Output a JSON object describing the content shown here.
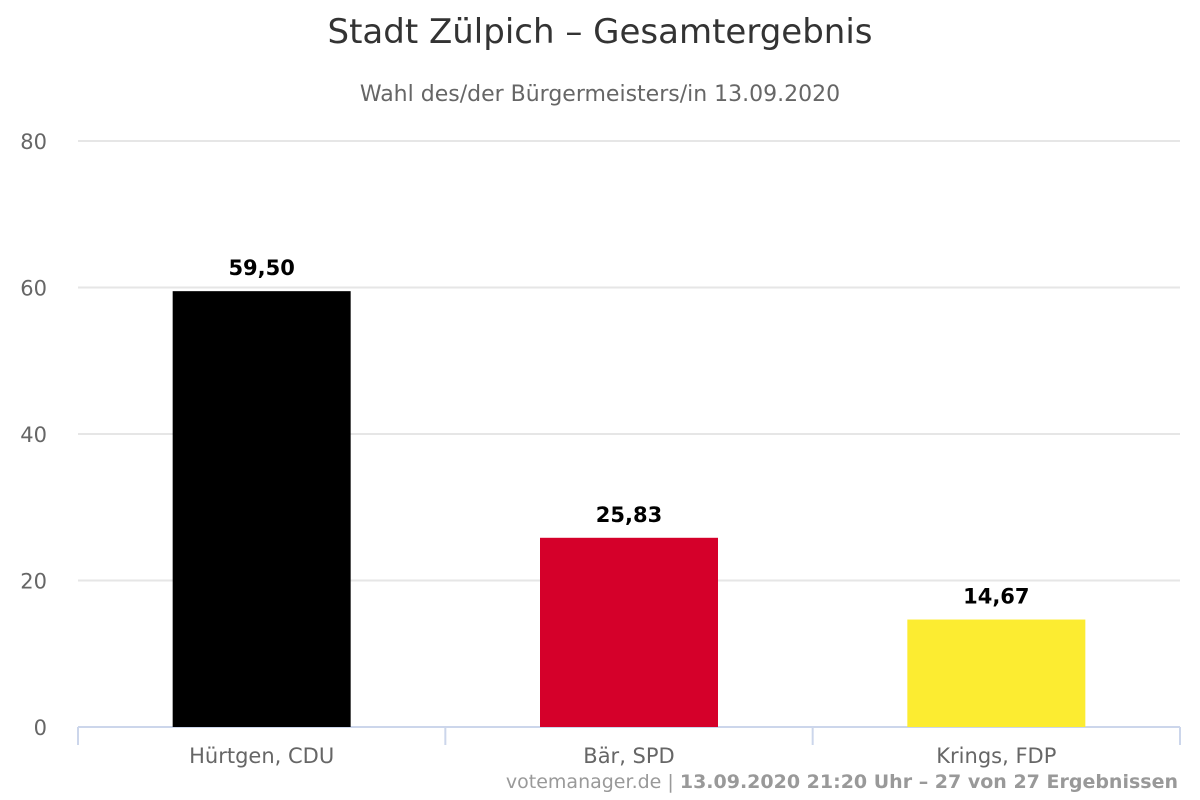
{
  "chart_data": {
    "type": "bar",
    "title": "Stadt Zülpich – Gesamtergebnis",
    "subtitle": "Wahl des/der Bürgermeisters/in 13.09.2020",
    "categories": [
      "Hürtgen, CDU",
      "Bär, SPD",
      "Krings, FDP"
    ],
    "values": [
      59.5,
      25.83,
      14.67
    ],
    "value_labels": [
      "59,50",
      "25,83",
      "14,67"
    ],
    "colors": [
      "#000000",
      "#d5002a",
      "#fcec31"
    ],
    "ylim": [
      0,
      80
    ],
    "yticks": [
      0,
      20,
      40,
      60,
      80
    ],
    "grid": true,
    "xlabel": "",
    "ylabel": ""
  },
  "credits": {
    "source": "votemanager.de",
    "separator": " | ",
    "status": "13.09.2020 21:20 Uhr – 27 von 27 Ergebnissen"
  }
}
